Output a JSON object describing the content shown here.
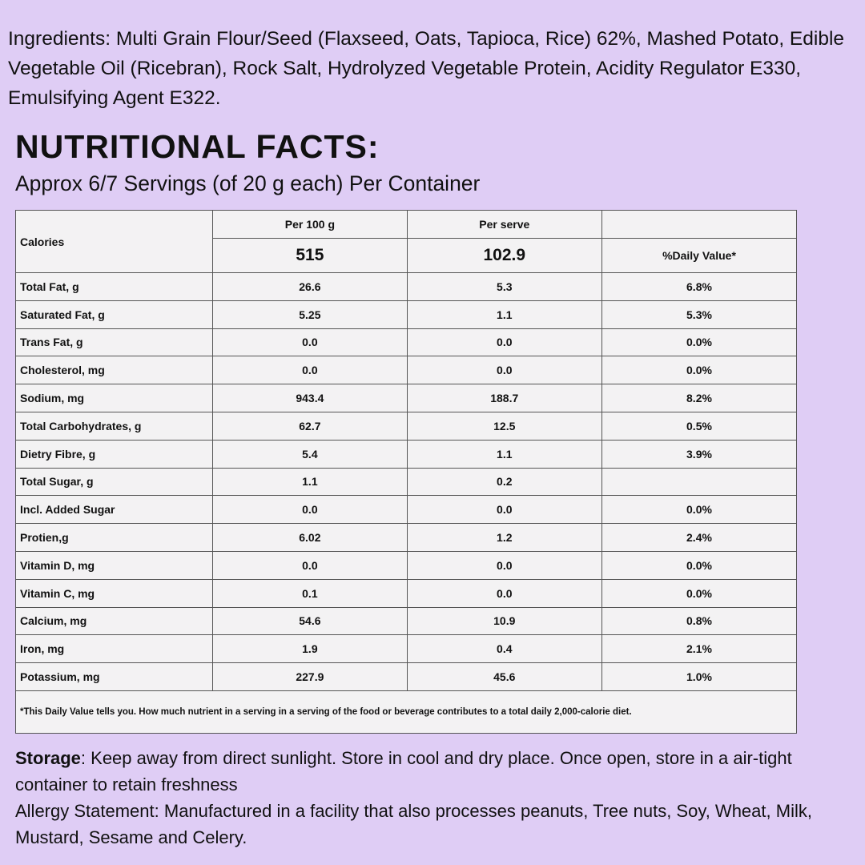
{
  "ingredients": "Ingredients: Multi Grain Flour/Seed (Flaxseed, Oats, Tapioca, Rice) 62%, Mashed Potato, Edible Vegetable Oil (Ricebran), Rock Salt, Hydrolyzed Vegetable Protein, Acidity Regulator E330, Emulsifying Agent E322.",
  "title": "NUTRITIONAL FACTS:",
  "subtitle": "Approx 6/7 Servings (of 20 g each) Per Container",
  "table": {
    "header": {
      "label": "Calories",
      "columns": [
        "Per 100 g",
        "Per serve"
      ],
      "calories": [
        "515",
        "102.9"
      ],
      "daily_value": "%Daily Value*"
    },
    "rows": [
      [
        "Total Fat, g",
        "26.6",
        "5.3",
        "6.8%"
      ],
      [
        "Saturated Fat, g",
        "5.25",
        "1.1",
        "5.3%"
      ],
      [
        "Trans Fat, g",
        "0.0",
        "0.0",
        "0.0%"
      ],
      [
        "Cholesterol, mg",
        "0.0",
        "0.0",
        "0.0%"
      ],
      [
        "Sodium, mg",
        "943.4",
        "188.7",
        "8.2%"
      ],
      [
        "Total Carbohydrates, g",
        "62.7",
        "12.5",
        "0.5%"
      ],
      [
        "Dietry Fibre, g",
        "5.4",
        "1.1",
        "3.9%"
      ],
      [
        "Total Sugar, g",
        "1.1",
        "0.2",
        null
      ],
      [
        "Incl. Added Sugar",
        "0.0",
        "0.0",
        "0.0%"
      ],
      [
        "Protien,g",
        "6.02",
        "1.2",
        "2.4%"
      ],
      [
        "Vitamin D, mg",
        "0.0",
        "0.0",
        "0.0%"
      ],
      [
        "Vitamin C, mg",
        "0.1",
        "0.0",
        "0.0%"
      ],
      [
        "Calcium, mg",
        "54.6",
        "10.9",
        "0.8%"
      ],
      [
        "Iron, mg",
        "1.9",
        "0.4",
        "2.1%"
      ],
      [
        "Potassium, mg",
        "227.9",
        "45.6",
        "1.0%"
      ]
    ],
    "footnote": "*This Daily Value tells you. How much nutrient in a serving in a serving of the food or beverage contributes to a total daily 2,000-calorie diet."
  },
  "storage": {
    "label": "Storage",
    "text": ": Keep away from direct sunlight. Store in cool and dry place. Once open, store in a air-tight container to retain freshness"
  },
  "allergy": "Allergy Statement: Manufactured in a facility that also processes peanuts, Tree nuts, Soy, Wheat, Milk, Mustard, Sesame and Celery."
}
